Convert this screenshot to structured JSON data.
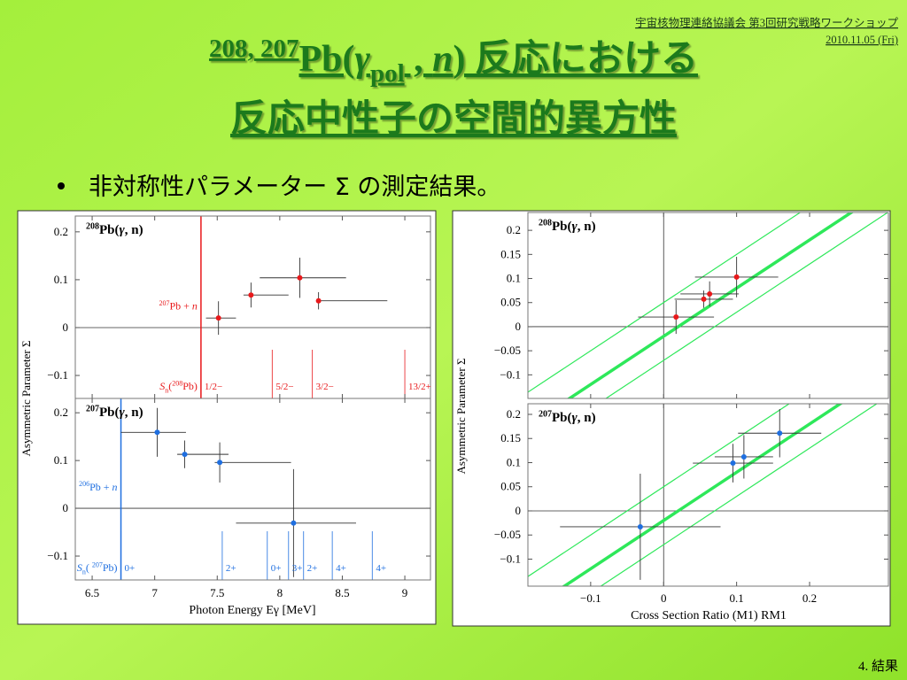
{
  "header": {
    "meeting": "宇宙核物理連絡協議会 第3回研究戦略ワークショップ",
    "date": "2010.11.05 (Fri)"
  },
  "title": {
    "line1": [
      "208, 207",
      "Pb(",
      "γ",
      "pol",
      " , ",
      "n",
      ") 反応における"
    ],
    "line2": "反応中性子の空間的異方性"
  },
  "bullet": "非対称性パラメーター Σ の測定結果。",
  "footer": "4. 結果",
  "figures": [
    {
      "x_label": "Photon Energy Eγ [MeV]",
      "y_label": "Asymmetric Parameter Σ",
      "xlim": [
        6.365,
        9.205
      ],
      "xticks": [
        6.5,
        7,
        7.5,
        8,
        8.5,
        9
      ],
      "panels": [
        {
          "label": [
            "208",
            "Pb(",
            "γ",
            ", n)"
          ],
          "color": "#e8191b",
          "ylim": [
            -0.148,
            0.233
          ],
          "yticks": [
            {
              "value": -0.1,
              "label": "−0.1"
            },
            0,
            0.1,
            0.2
          ],
          "points": {
            "x": [
              7.51,
              7.77,
              8.16,
              8.31
            ],
            "y": [
              0.02,
              0.068,
              0.104,
              0.056
            ],
            "x_low": [
              7.41,
              7.71,
              7.84,
              8.31
            ],
            "x_high": [
              7.65,
              8.07,
              8.53,
              8.86
            ],
            "y_err": [
              0.035,
              0.026,
              0.042,
              0.018
            ]
          },
          "threshold": {
            "x": 7.37,
            "label": [
              "207",
              "Pb + ",
              "n"
            ]
          },
          "sn": [
            "S",
            "n",
            "(",
            "208",
            "Pb)"
          ],
          "levels": [
            {
              "x": 7.37,
              "label": "1/2−"
            },
            {
              "x": 7.94,
              "label": "5/2−"
            },
            {
              "x": 8.26,
              "label": "3/2−"
            },
            {
              "x": 9.0,
              "label": "13/2+"
            }
          ]
        },
        {
          "label": [
            "207",
            "Pb(",
            "γ",
            ", n)"
          ],
          "color": "#1f6fe0",
          "ylim": [
            -0.15,
            0.23
          ],
          "yticks": [
            {
              "value": -0.1,
              "label": "−0.1"
            },
            0,
            0.1,
            0.2
          ],
          "points": {
            "x": [
              7.02,
              7.24,
              7.52,
              8.11
            ],
            "y": [
              0.159,
              0.113,
              0.096,
              -0.031
            ],
            "x_low": [
              6.73,
              7.18,
              7.48,
              7.65
            ],
            "x_high": [
              7.25,
              7.59,
              8.09,
              8.61
            ],
            "y_err": [
              0.051,
              0.029,
              0.042,
              0.113
            ]
          },
          "threshold": {
            "x": 6.73,
            "label": [
              "206",
              "Pb + ",
              "n"
            ]
          },
          "sn": [
            "S",
            "n",
            "( ",
            "207",
            "Pb)"
          ],
          "levels": [
            {
              "x": 6.73,
              "label": "0+"
            },
            {
              "x": 7.54,
              "label": "2+"
            },
            {
              "x": 7.9,
              "label": "0+"
            },
            {
              "x": 8.07,
              "label": "3+"
            },
            {
              "x": 8.19,
              "label": "2+"
            },
            {
              "x": 8.42,
              "label": "4+"
            },
            {
              "x": 8.74,
              "label": "4+"
            }
          ]
        }
      ]
    },
    {
      "x_label": "Cross Section Ratio (M1) RM1",
      "y_label": "Asymmetric Parameter Σ",
      "xlim": [
        -0.186,
        0.308
      ],
      "xticks": [
        {
          "value": -0.1,
          "label": "−0.1"
        },
        0,
        0.1,
        0.2
      ],
      "curves": [
        {
          "x": [
            -0.24,
            0.36
          ],
          "y": [
            -0.26,
            0.34
          ]
        },
        {
          "x": [
            -0.29,
            0.31
          ],
          "y": [
            -0.24,
            0.36
          ]
        },
        {
          "x": [
            -0.19,
            0.41
          ],
          "y": [
            -0.26,
            0.34
          ]
        }
      ],
      "curve_color": "#2ee85a",
      "panels": [
        {
          "label": [
            "208",
            "Pb(",
            "γ",
            ", n)"
          ],
          "color": "#e8191b",
          "ylim": [
            -0.149,
            0.237
          ],
          "yticks": [
            {
              "value": -0.1,
              "label": "−0.1"
            },
            {
              "value": -0.05,
              "label": "−0.05"
            },
            0,
            0.05,
            0.1,
            0.15,
            0.2
          ],
          "points": {
            "x": [
              0.017,
              0.055,
              0.063,
              0.1
            ],
            "y": [
              0.02,
              0.057,
              0.068,
              0.103
            ],
            "x_err": [
              0.052,
              0.04,
              0.04,
              0.057
            ],
            "y_err": [
              0.035,
              0.018,
              0.026,
              0.042
            ]
          }
        },
        {
          "label": [
            "207",
            "Pb(",
            "γ",
            ", n)"
          ],
          "color": "#1f6fe0",
          "ylim": [
            -0.156,
            0.222
          ],
          "yticks": [
            {
              "value": -0.1,
              "label": "−0.1"
            },
            {
              "value": -0.05,
              "label": "−0.05"
            },
            0,
            0.05,
            0.1,
            0.15,
            0.2
          ],
          "points": {
            "x": [
              -0.032,
              0.095,
              0.11,
              0.159
            ],
            "y": [
              -0.033,
              0.099,
              0.112,
              0.161
            ],
            "x_err": [
              0.11,
              0.055,
              0.04,
              0.057
            ],
            "y_err": [
              0.11,
              0.04,
              0.045,
              0.05
            ]
          }
        }
      ]
    }
  ]
}
